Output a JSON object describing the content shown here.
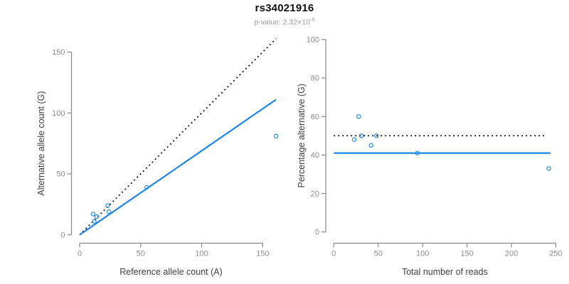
{
  "title": "rs34021916",
  "subtitle": {
    "prefix": "p-value: 2.32×10",
    "exponent": "-5"
  },
  "colors": {
    "accent_blue": "#1c86ee",
    "line_black": "#000000",
    "axis_gray": "#888888",
    "tick_label_gray": "#8c8c8c",
    "axis_title_dark": "#404040",
    "subtitle_gray": "#999999"
  },
  "chart_data": [
    {
      "id": "allele-count-scatter",
      "type": "scatter",
      "xlabel": "Reference allele count (A)",
      "ylabel": "Alternative allele count (G)",
      "xlim": [
        0,
        165
      ],
      "ylim": [
        0,
        165
      ],
      "xticks": [
        0,
        50,
        100,
        150
      ],
      "yticks": [
        0,
        50,
        100,
        150
      ],
      "grid": false,
      "legend": "none",
      "points": [
        [
          11,
          17
        ],
        [
          14,
          15
        ],
        [
          12,
          11
        ],
        [
          23,
          24
        ],
        [
          24,
          19
        ],
        [
          55,
          39
        ],
        [
          161,
          81
        ]
      ],
      "lines": [
        {
          "name": "identity-line",
          "style": "dotted",
          "color": "#000000",
          "x": [
            0,
            161
          ],
          "y": [
            0,
            161
          ]
        },
        {
          "name": "regression-line",
          "style": "solid",
          "color": "#1c86ee",
          "x": [
            0,
            161
          ],
          "y": [
            0,
            111
          ]
        }
      ]
    },
    {
      "id": "percentage-vs-reads-scatter",
      "type": "scatter",
      "xlabel": "Total number of reads",
      "ylabel": "Percentage alternative (G)",
      "xlim": [
        0,
        250
      ],
      "ylim": [
        0,
        100
      ],
      "xticks": [
        0,
        50,
        100,
        150,
        200,
        250
      ],
      "yticks": [
        0,
        20,
        40,
        60,
        80,
        100
      ],
      "grid": false,
      "legend": "none",
      "points": [
        [
          23,
          48
        ],
        [
          28,
          60
        ],
        [
          31,
          50
        ],
        [
          42,
          45
        ],
        [
          48,
          50
        ],
        [
          94,
          41
        ],
        [
          242,
          33
        ]
      ],
      "lines": [
        {
          "name": "expected-50pct-line",
          "style": "dotted",
          "color": "#000000",
          "x": [
            0,
            239
          ],
          "y": [
            50,
            50
          ]
        },
        {
          "name": "mean-percentage-line",
          "style": "solid",
          "color": "#1c86ee",
          "x": [
            0,
            244
          ],
          "y": [
            41,
            41
          ]
        }
      ]
    }
  ]
}
